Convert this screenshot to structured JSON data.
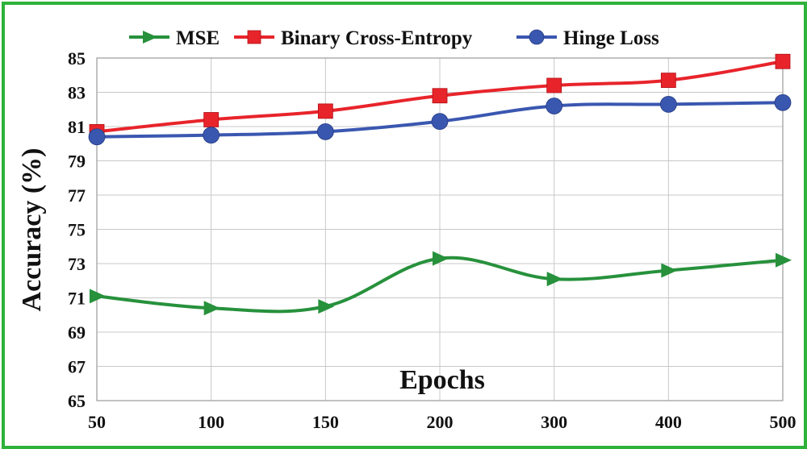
{
  "chart_data": {
    "type": "line",
    "categories": [
      "50",
      "100",
      "150",
      "200",
      "300",
      "400",
      "500"
    ],
    "series": [
      {
        "name": "MSE",
        "color": "#27913c",
        "marker": "triangle-right",
        "values": [
          71.1,
          70.4,
          70.5,
          73.3,
          72.1,
          72.6,
          73.2
        ]
      },
      {
        "name": "Binary Cross-Entropy",
        "color": "#e8242b",
        "marker": "square",
        "values": [
          80.7,
          81.4,
          81.9,
          82.8,
          83.4,
          83.7,
          84.8
        ]
      },
      {
        "name": "Hinge Loss",
        "color": "#3a57b0",
        "marker": "circle",
        "values": [
          80.4,
          80.5,
          80.7,
          81.3,
          82.2,
          82.3,
          82.4
        ]
      }
    ],
    "title": "",
    "xlabel": "Epochs",
    "ylabel": "Accuracy (%)",
    "ylim": [
      65,
      85
    ],
    "yticks": [
      "65",
      "67",
      "69",
      "71",
      "73",
      "75",
      "77",
      "79",
      "81",
      "83",
      "85"
    ],
    "grid": true,
    "legend": "top"
  }
}
